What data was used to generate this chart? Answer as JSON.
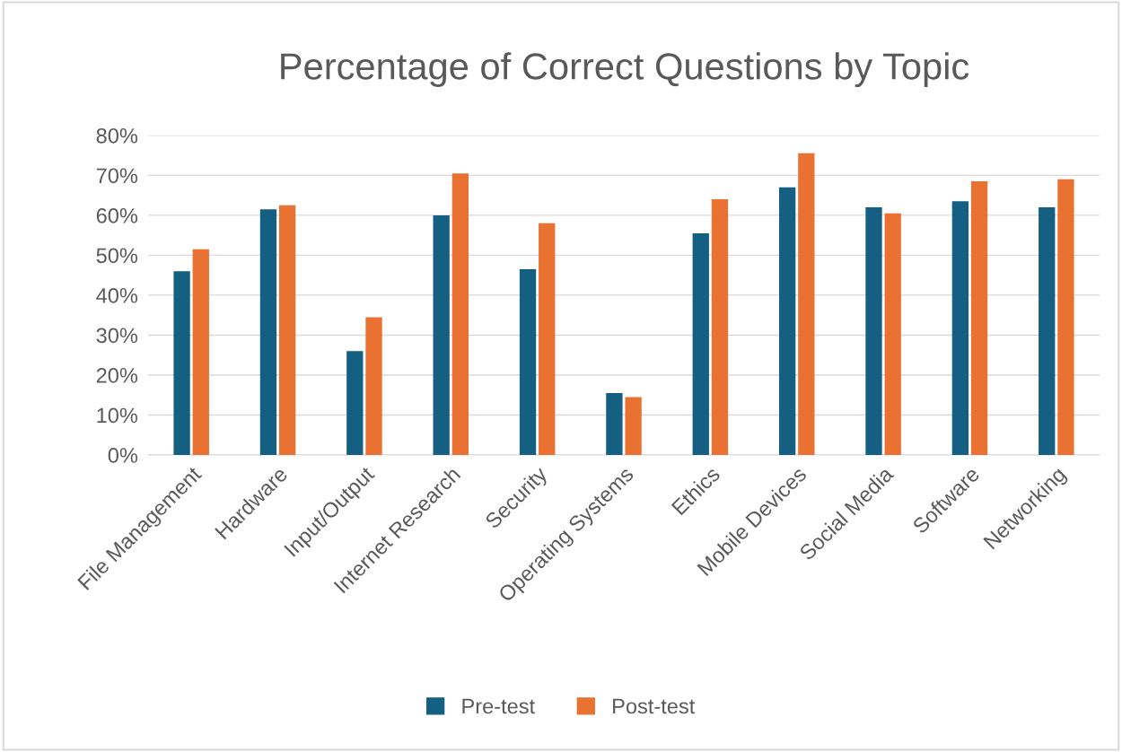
{
  "chart_data": {
    "type": "bar",
    "title": "Percentage of Correct Questions by Topic",
    "categories": [
      "File Management",
      "Hardware",
      "Input/Output",
      "Internet Research",
      "Security",
      "Operating Systems",
      "Ethics",
      "Mobile Devices",
      "Social Media",
      "Software",
      "Networking"
    ],
    "series": [
      {
        "name": "Pre-test",
        "color": "#156082",
        "values": [
          46,
          61.5,
          26,
          60,
          46.5,
          15.5,
          55.5,
          67,
          62,
          63.5,
          62
        ]
      },
      {
        "name": "Post-test",
        "color": "#e97132",
        "values": [
          51.5,
          62.5,
          34.5,
          70.5,
          58,
          14.5,
          64,
          75.5,
          60.5,
          68.5,
          69
        ]
      }
    ],
    "ylim": [
      0,
      80
    ],
    "yticks": [
      {
        "value": 0,
        "label": "0%"
      },
      {
        "value": 10,
        "label": "10%"
      },
      {
        "value": 20,
        "label": "20%"
      },
      {
        "value": 30,
        "label": "30%"
      },
      {
        "value": 40,
        "label": "40%"
      },
      {
        "value": 50,
        "label": "50%"
      },
      {
        "value": 60,
        "label": "60%"
      },
      {
        "value": 70,
        "label": "70%"
      },
      {
        "value": 80,
        "label": "80%"
      }
    ],
    "grid": "y",
    "legend": "bottom"
  }
}
